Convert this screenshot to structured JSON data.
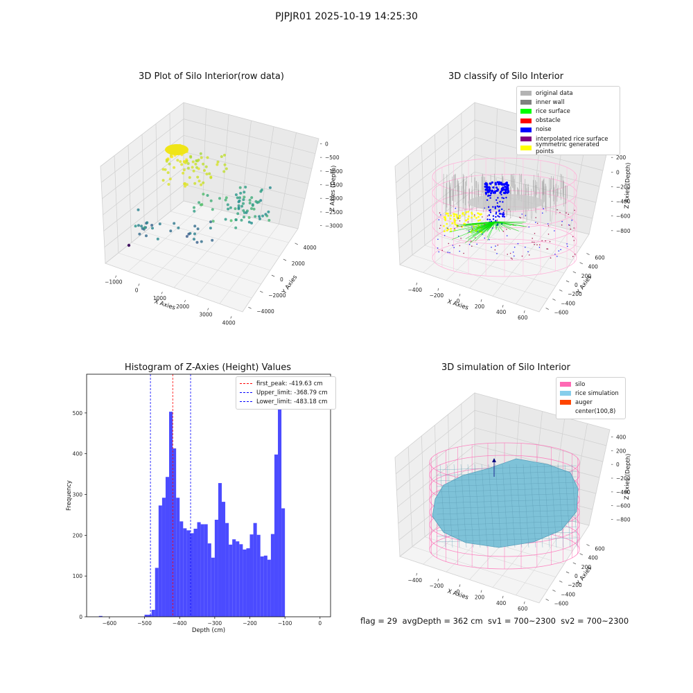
{
  "figure": {
    "suptitle": "PJPJR01 2025-10-19 14:25:30",
    "status": "flag = 29  avgDepth = 362 cm  sv1 = 700~2300  sv2 = 700~2300"
  },
  "panel1": {
    "title": "3D Plot of Silo Interior(row data)",
    "xlabel": "X Axies",
    "ylabel": "Y Axies",
    "zlabel": "Z Axies (Depth)",
    "xticks": [
      "−1000",
      "0",
      "1000",
      "2000",
      "3000",
      "4000"
    ],
    "yticks": [
      "−4000",
      "−2000",
      "0",
      "2000",
      "4000"
    ],
    "zticks": [
      "0",
      "−500",
      "−1000",
      "−1500",
      "−2000",
      "−2500",
      "−3000"
    ]
  },
  "panel2": {
    "title": "3D classify of Silo Interior",
    "xlabel": "X Axies",
    "ylabel": "Y Axies",
    "zlabel": "Z Axies (Depth)",
    "xticks": [
      "−400",
      "−200",
      "0",
      "200",
      "400",
      "600"
    ],
    "yticks": [
      "−600",
      "−400",
      "−200",
      "0",
      "200",
      "400",
      "600"
    ],
    "zticks": [
      "200",
      "0",
      "−200",
      "−400",
      "−600",
      "−800"
    ],
    "ztop_partial": "0",
    "legend": [
      {
        "label": "original data",
        "color": "#b3b3b3"
      },
      {
        "label": "inner wall",
        "color": "#808080"
      },
      {
        "label": "rice surface",
        "color": "#00ff00"
      },
      {
        "label": "obstacle",
        "color": "#ff0000"
      },
      {
        "label": "noise",
        "color": "#0000ff"
      },
      {
        "label": "interpolated rice surface",
        "color": "#800080"
      },
      {
        "label": "symmetric generated points",
        "color": "#ffff00"
      }
    ]
  },
  "panel4": {
    "title": "3D simulation of Silo Interior",
    "xlabel": "X Axies",
    "ylabel": "Y Axies",
    "zlabel": "Z Axies (Depth)",
    "xticks": [
      "−400",
      "−200",
      "0",
      "200",
      "400",
      "600"
    ],
    "yticks": [
      "−600",
      "−400",
      "−200",
      "0",
      "200",
      "400",
      "600"
    ],
    "zticks": [
      "400",
      "200",
      "0",
      "−200",
      "−400",
      "−600",
      "−800"
    ],
    "legend": [
      {
        "label": "silo",
        "color": "#ff69b4"
      },
      {
        "label": "rice simulation",
        "color": "#87ceeb"
      },
      {
        "label": "auger",
        "color": "#ff4500"
      },
      {
        "label": "center(100,8)",
        "color": ""
      }
    ]
  },
  "chart_data": [
    {
      "type": "scatter",
      "title": "3D Plot of Silo Interior(row data)",
      "xlabel": "X Axies",
      "ylabel": "Y Axies",
      "zlabel": "Z Axies (Depth)",
      "xlim": [
        -1300,
        4500
      ],
      "ylim": [
        -4500,
        4500
      ],
      "zlim": [
        -3400,
        200
      ],
      "colormap": "viridis by depth"
    },
    {
      "type": "scatter",
      "title": "3D classify of Silo Interior",
      "xlabel": "X Axies",
      "ylabel": "Y Axies",
      "zlabel": "Z Axies (Depth)",
      "xlim": [
        -500,
        700
      ],
      "ylim": [
        -700,
        700
      ],
      "zlim": [
        -900,
        300
      ],
      "series": [
        {
          "name": "original data"
        },
        {
          "name": "inner wall"
        },
        {
          "name": "rice surface"
        },
        {
          "name": "obstacle"
        },
        {
          "name": "noise"
        },
        {
          "name": "interpolated rice surface"
        },
        {
          "name": "symmetric generated points"
        }
      ]
    },
    {
      "type": "bar",
      "title": "Histogram of Z-Axies (Height) Values",
      "xlabel": "Depth (cm)",
      "ylabel": "Frequency",
      "xlim": [
        -665,
        30
      ],
      "ylim": [
        0,
        595
      ],
      "xticks": [
        -600,
        -500,
        -400,
        -300,
        -200,
        -100,
        0
      ],
      "yticks": [
        0,
        100,
        200,
        300,
        400,
        500
      ],
      "bin_width": 10,
      "bins": [
        {
          "x": -630,
          "y": 2
        },
        {
          "x": -500,
          "y": 5
        },
        {
          "x": -490,
          "y": 5
        },
        {
          "x": -480,
          "y": 17
        },
        {
          "x": -470,
          "y": 120
        },
        {
          "x": -460,
          "y": 273
        },
        {
          "x": -450,
          "y": 292
        },
        {
          "x": -440,
          "y": 343
        },
        {
          "x": -430,
          "y": 503
        },
        {
          "x": -420,
          "y": 413
        },
        {
          "x": -410,
          "y": 292
        },
        {
          "x": -400,
          "y": 234
        },
        {
          "x": -390,
          "y": 217
        },
        {
          "x": -380,
          "y": 212
        },
        {
          "x": -370,
          "y": 205
        },
        {
          "x": -360,
          "y": 216
        },
        {
          "x": -350,
          "y": 232
        },
        {
          "x": -340,
          "y": 227
        },
        {
          "x": -330,
          "y": 227
        },
        {
          "x": -320,
          "y": 180
        },
        {
          "x": -310,
          "y": 145
        },
        {
          "x": -300,
          "y": 238
        },
        {
          "x": -290,
          "y": 328
        },
        {
          "x": -280,
          "y": 282
        },
        {
          "x": -270,
          "y": 230
        },
        {
          "x": -260,
          "y": 177
        },
        {
          "x": -250,
          "y": 190
        },
        {
          "x": -240,
          "y": 185
        },
        {
          "x": -230,
          "y": 178
        },
        {
          "x": -220,
          "y": 165
        },
        {
          "x": -210,
          "y": 168
        },
        {
          "x": -200,
          "y": 202
        },
        {
          "x": -190,
          "y": 230
        },
        {
          "x": -180,
          "y": 201
        },
        {
          "x": -170,
          "y": 148
        },
        {
          "x": -160,
          "y": 150
        },
        {
          "x": -150,
          "y": 140
        },
        {
          "x": -140,
          "y": 203
        },
        {
          "x": -130,
          "y": 398
        },
        {
          "x": -120,
          "y": 562
        },
        {
          "x": -110,
          "y": 266
        }
      ],
      "vlines": [
        {
          "name": "first_peak: -419.63 cm",
          "x": -419.63,
          "color": "#ff0000"
        },
        {
          "name": "Upper_limit: -368.79 cm",
          "x": -368.79,
          "color": "#0000ff"
        },
        {
          "name": "Lower_limit: -483.18 cm",
          "x": -483.18,
          "color": "#0000ff"
        }
      ],
      "bar_color": "#4b4bff"
    },
    {
      "type": "scatter",
      "title": "3D simulation of Silo Interior",
      "xlabel": "X Axies",
      "ylabel": "Y Axies",
      "zlabel": "Z Axies (Depth)",
      "xlim": [
        -500,
        700
      ],
      "ylim": [
        -700,
        700
      ],
      "zlim": [
        -900,
        450
      ],
      "series": [
        {
          "name": "silo"
        },
        {
          "name": "rice simulation"
        },
        {
          "name": "auger"
        },
        {
          "name": "center(100,8)"
        }
      ]
    }
  ]
}
